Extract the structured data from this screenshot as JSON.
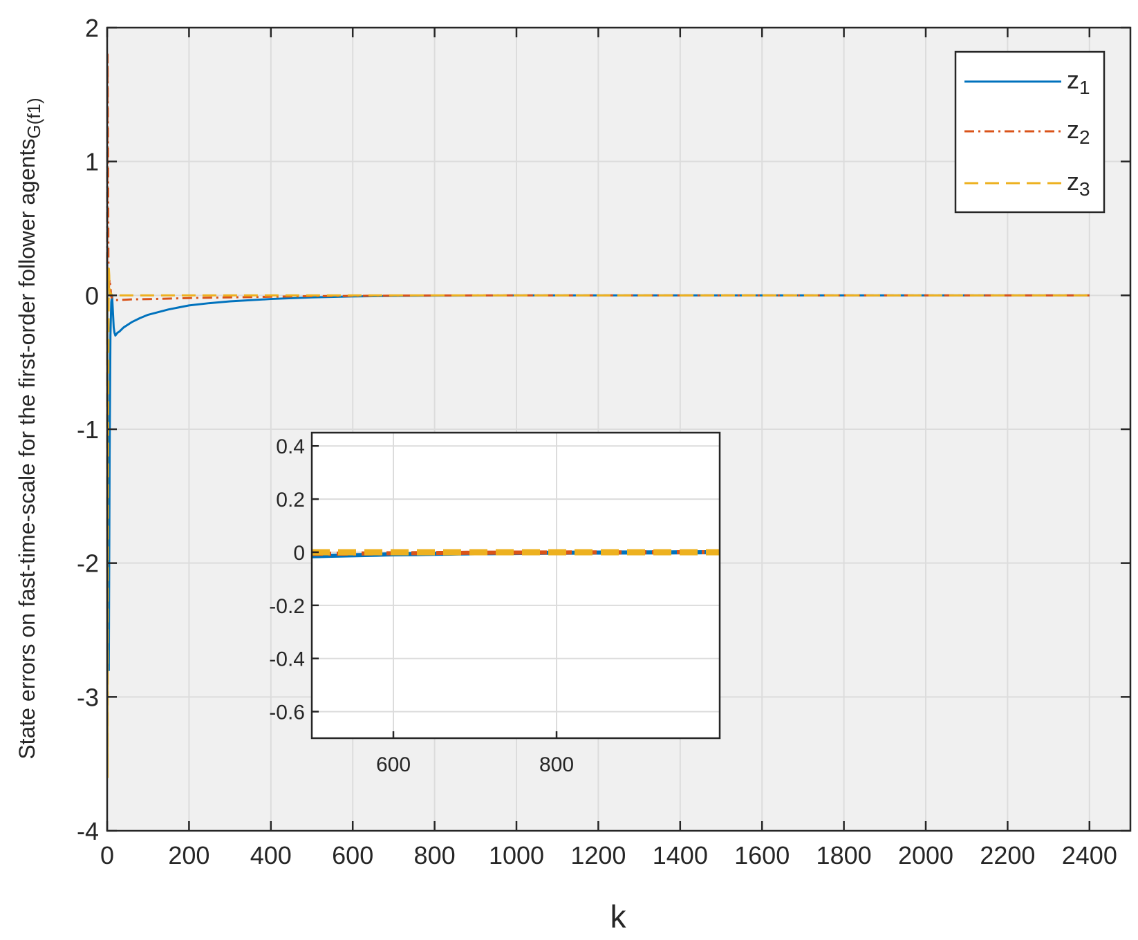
{
  "chart_data": {
    "type": "line",
    "xlabel": "k",
    "ylabel": "State errors on fast-time-scale for the first-order follower agents",
    "ylabel_subscript": "G(f1)",
    "xlim": [
      0,
      2500
    ],
    "ylim": [
      -4,
      2
    ],
    "xticks": [
      0,
      200,
      400,
      600,
      800,
      1000,
      1200,
      1400,
      1600,
      1800,
      2000,
      2200,
      2400
    ],
    "yticks": [
      -4,
      -3,
      -2,
      -1,
      0,
      1,
      2
    ],
    "grid": true,
    "legend_position": "top-right",
    "series": [
      {
        "name": "z",
        "name_subscript": "1",
        "color": "#0072BD",
        "style": "solid",
        "x": [
          0,
          2,
          4,
          6,
          8,
          10,
          12,
          14,
          16,
          18,
          20,
          25,
          30,
          40,
          60,
          80,
          100,
          150,
          200,
          250,
          300,
          400,
          500,
          600,
          700,
          800,
          1000,
          1500,
          2000,
          2400
        ],
        "y": [
          0.3,
          -1.5,
          -2.8,
          -1.2,
          -0.3,
          -0.05,
          0.0,
          -0.12,
          -0.24,
          -0.28,
          -0.3,
          -0.28,
          -0.27,
          -0.24,
          -0.2,
          -0.17,
          -0.145,
          -0.105,
          -0.075,
          -0.058,
          -0.045,
          -0.027,
          -0.015,
          -0.008,
          -0.004,
          -0.002,
          0,
          0,
          0,
          0
        ]
      },
      {
        "name": "z",
        "name_subscript": "2",
        "color": "#D95319",
        "style": "dashdot",
        "x": [
          0,
          1,
          2,
          3,
          4,
          6,
          8,
          10,
          12,
          14,
          16,
          20,
          30,
          60,
          100,
          200,
          300,
          400,
          500,
          600,
          700,
          800,
          1000,
          1500,
          2000,
          2400
        ],
        "y": [
          0.1,
          1.8,
          1.2,
          0.3,
          0.05,
          0.12,
          0.06,
          -0.01,
          -0.02,
          -0.025,
          -0.03,
          -0.035,
          -0.035,
          -0.03,
          -0.028,
          -0.02,
          -0.015,
          -0.01,
          -0.006,
          -0.004,
          -0.002,
          -0.001,
          0,
          0,
          0,
          0
        ]
      },
      {
        "name": "z",
        "name_subscript": "3",
        "color": "#EDB120",
        "style": "dashed",
        "x": [
          0,
          1,
          2,
          3,
          4,
          5,
          6,
          8,
          10,
          12,
          15,
          20,
          30,
          50,
          100,
          200,
          400,
          600,
          1000,
          1500,
          2000,
          2400
        ],
        "y": [
          0.2,
          -3.6,
          -1.5,
          -0.4,
          0.2,
          0.15,
          0.0,
          0.02,
          0.01,
          0.0,
          0.0,
          0.0,
          0.0,
          0.0,
          0.0,
          0.0,
          0.0,
          0.0,
          0.0,
          0.0,
          0.0,
          0.0
        ]
      }
    ],
    "inset": {
      "xlim": [
        500,
        1000
      ],
      "ylim": [
        -0.7,
        0.45
      ],
      "xticks": [
        600,
        800
      ],
      "yticks": [
        -0.6,
        -0.4,
        -0.2,
        0,
        0.2,
        0.4
      ],
      "ytick_labels": [
        "-0.6",
        "-0.4",
        "-0.2",
        "0",
        "0.2",
        "0.4"
      ],
      "grid": true
    }
  }
}
